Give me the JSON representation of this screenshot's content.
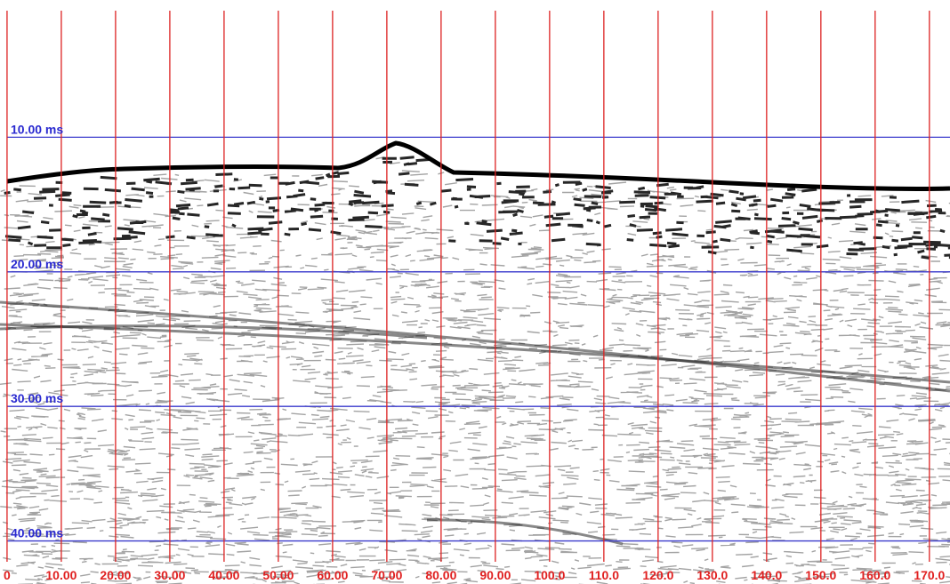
{
  "chart_data": {
    "type": "seismic",
    "xlim": [
      -1.3,
      173.8
    ],
    "ylim": [
      -0.2,
      43.2
    ],
    "xticks": [
      {
        "value": 0,
        "label": "0"
      },
      {
        "value": 10,
        "label": "10.00"
      },
      {
        "value": 20,
        "label": "20.00"
      },
      {
        "value": 30,
        "label": "30.00"
      },
      {
        "value": 40,
        "label": "40.00"
      },
      {
        "value": 50,
        "label": "50.00"
      },
      {
        "value": 60,
        "label": "60.00"
      },
      {
        "value": 70,
        "label": "70.00"
      },
      {
        "value": 80,
        "label": "80.00"
      },
      {
        "value": 90,
        "label": "90.00"
      },
      {
        "value": 100,
        "label": "100.0"
      },
      {
        "value": 110,
        "label": "110.0"
      },
      {
        "value": 120,
        "label": "120.0"
      },
      {
        "value": 130,
        "label": "130.0"
      },
      {
        "value": 140,
        "label": "140.0"
      },
      {
        "value": 150,
        "label": "150.0"
      },
      {
        "value": 160,
        "label": "160.0"
      },
      {
        "value": 170,
        "label": "170.0"
      }
    ],
    "yticks": [
      {
        "value": 10,
        "label": "10.00 ms"
      },
      {
        "value": 20,
        "label": "20.00 ms"
      },
      {
        "value": 30,
        "label": "30.00 ms"
      },
      {
        "value": 40,
        "label": "40.00 ms"
      }
    ],
    "xgrid_color": "#dd2222",
    "ygrid_color": "#3a3acc"
  }
}
